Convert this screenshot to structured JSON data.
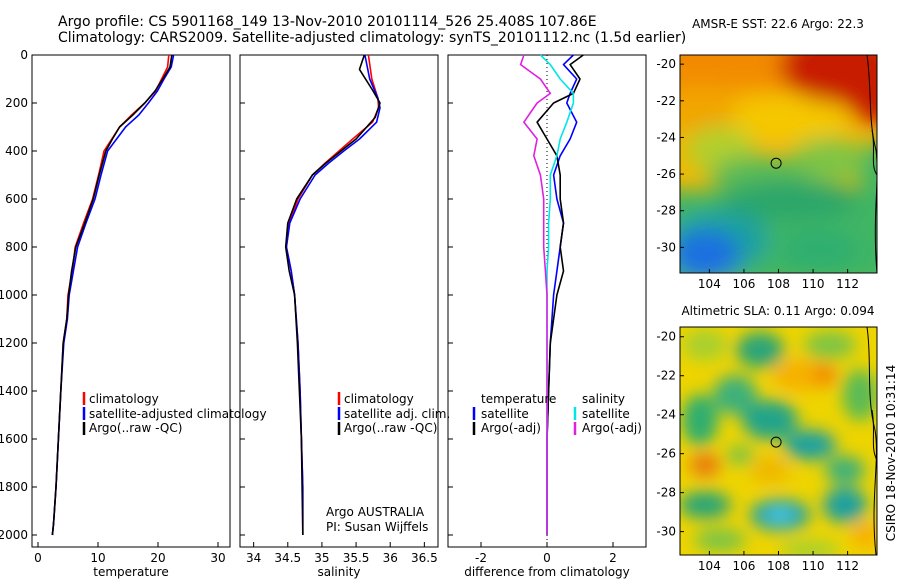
{
  "figure": {
    "title_line1": "Argo profile: CS 5901168_149 13-Nov-2010 20101114_526 25.408S 107.86E",
    "title_line2": "Climatology: CARS2009. Satellite-adjusted climatology: synTS_20101112.nc (1.5d earlier)",
    "footer": "CSIRO 18-Nov-2010 10:31:14",
    "colors": {
      "climatology": "#ff0000",
      "satellite": "#0000ff",
      "argo": "#000000",
      "salinity_satellite": "#00e5e5",
      "salinity_argo": "#e020e0"
    }
  },
  "panels": {
    "temperature": {
      "xlabel": "temperature"
    },
    "salinity": {
      "xlabel": "salinity",
      "note1": "Argo AUSTRALIA",
      "note2": "PI: Susan Wijffels"
    },
    "difference": {
      "xlabel": "difference from climatology"
    }
  },
  "legends": {
    "temperature": [
      "climatology",
      "satellite-adjusted climatology",
      "Argo(..raw -QC)"
    ],
    "salinity": [
      "climatology",
      "satellite adj. clim.",
      "Argo(..raw -QC)"
    ],
    "difference_temp": {
      "header": "temperature",
      "items": [
        "satellite",
        "Argo(-adj)"
      ]
    },
    "difference_sal": {
      "header": "salinity",
      "items": [
        "satellite",
        "Argo(-adj)"
      ]
    }
  },
  "maps": {
    "sst": {
      "title": "AMSR-E SST: 22.6 Argo: 22.3",
      "xticks": [
        "104",
        "106",
        "108",
        "110",
        "112"
      ],
      "yticks": [
        "-20",
        "-22",
        "-24",
        "-26",
        "-28",
        "-30"
      ],
      "marker": {
        "lon": 107.86,
        "lat": -25.408
      }
    },
    "sla": {
      "title": "Altimetric SLA: 0.11 Argo: 0.094",
      "xticks": [
        "104",
        "106",
        "108",
        "110",
        "112"
      ],
      "yticks": [
        "-20",
        "-22",
        "-24",
        "-26",
        "-28",
        "-30"
      ],
      "marker": {
        "lon": 107.86,
        "lat": -25.408
      }
    }
  },
  "chart_data": [
    {
      "type": "line",
      "panel": "temperature",
      "xlabel": "temperature",
      "xlim": [
        -1,
        32
      ],
      "ylim": [
        2050,
        0
      ],
      "xticks": [
        0,
        10,
        20,
        30
      ],
      "yticks": [
        0,
        200,
        400,
        600,
        800,
        1000,
        1200,
        1400,
        1600,
        1800,
        2000
      ],
      "series": [
        {
          "name": "climatology",
          "color": "#ff0000",
          "x": [
            21.8,
            21.6,
            20.6,
            19.6,
            17.8,
            15.6,
            13.6,
            12.3,
            11.0,
            10.1,
            9.1,
            7.6,
            6.2,
            5.7,
            5.0,
            4.8,
            4.2,
            3.8,
            3.4,
            3.0,
            2.6,
            2.4
          ],
          "y": [
            0,
            50,
            100,
            150,
            200,
            250,
            300,
            350,
            400,
            500,
            600,
            700,
            800,
            900,
            1000,
            1100,
            1200,
            1400,
            1600,
            1800,
            1950,
            2000
          ]
        },
        {
          "name": "satellite-adjusted climatology",
          "color": "#0000ff",
          "x": [
            22.6,
            22.2,
            21.0,
            19.9,
            18.4,
            16.8,
            14.6,
            13.1,
            11.6,
            10.5,
            9.5,
            8.0,
            6.6,
            5.9,
            5.2,
            4.9,
            4.3,
            3.8,
            3.4,
            3.0,
            2.6,
            2.4
          ],
          "y": [
            0,
            50,
            100,
            150,
            200,
            250,
            300,
            350,
            400,
            500,
            600,
            700,
            800,
            900,
            1000,
            1100,
            1200,
            1400,
            1600,
            1800,
            1950,
            2000
          ]
        },
        {
          "name": "Argo(..raw -QC)",
          "color": "#000000",
          "x": [
            22.3,
            22.0,
            20.8,
            19.5,
            17.8,
            15.8,
            13.6,
            12.4,
            11.3,
            10.2,
            9.2,
            7.8,
            6.3,
            5.6,
            5.1,
            4.8,
            4.2,
            3.8,
            3.4,
            3.0,
            2.6,
            2.4
          ],
          "y": [
            0,
            50,
            100,
            150,
            200,
            250,
            300,
            350,
            400,
            500,
            600,
            700,
            800,
            900,
            1000,
            1100,
            1200,
            1400,
            1600,
            1800,
            1950,
            2000
          ]
        }
      ]
    },
    {
      "type": "line",
      "panel": "salinity",
      "xlabel": "salinity",
      "xlim": [
        33.8,
        36.7
      ],
      "ylim": [
        2050,
        0
      ],
      "xticks": [
        34,
        34.5,
        35,
        35.5,
        36,
        36.5
      ],
      "series": [
        {
          "name": "climatology",
          "color": "#ff0000",
          "x": [
            35.68,
            35.73,
            35.82,
            35.83,
            35.74,
            35.45,
            35.25,
            35.05,
            34.86,
            34.65,
            34.52,
            34.48,
            34.55,
            34.6,
            34.65,
            34.68,
            34.7,
            34.72,
            34.72
          ],
          "y": [
            0,
            100,
            180,
            220,
            280,
            350,
            400,
            450,
            500,
            600,
            700,
            800,
            900,
            1000,
            1200,
            1400,
            1600,
            1800,
            2000
          ]
        },
        {
          "name": "satellite adj. clim.",
          "color": "#0000ff",
          "x": [
            35.63,
            35.7,
            35.82,
            35.85,
            35.8,
            35.55,
            35.32,
            35.1,
            34.9,
            34.68,
            34.53,
            34.48,
            34.55,
            34.6,
            34.65,
            34.68,
            34.7,
            34.72,
            34.72
          ],
          "y": [
            0,
            100,
            180,
            220,
            280,
            350,
            400,
            450,
            500,
            600,
            700,
            800,
            900,
            1000,
            1200,
            1400,
            1600,
            1800,
            2000
          ]
        },
        {
          "name": "Argo(..raw -QC)",
          "color": "#000000",
          "x": [
            35.62,
            35.55,
            35.75,
            35.85,
            35.78,
            35.5,
            35.28,
            35.06,
            34.86,
            34.63,
            34.5,
            34.47,
            34.52,
            34.6,
            34.64,
            34.67,
            34.7,
            34.71,
            34.72
          ],
          "y": [
            0,
            60,
            150,
            200,
            260,
            350,
            400,
            450,
            500,
            600,
            700,
            800,
            900,
            1000,
            1200,
            1400,
            1600,
            1800,
            2000
          ]
        }
      ]
    },
    {
      "type": "line",
      "panel": "difference",
      "xlabel": "difference from climatology",
      "xlim": [
        -3.0,
        3.0
      ],
      "ylim": [
        2050,
        0
      ],
      "xticks": [
        -2,
        0,
        2
      ],
      "series": [
        {
          "name": "temperature satellite",
          "color": "#0000ff",
          "x": [
            0.8,
            0.5,
            0.9,
            0.7,
            0.6,
            0.9,
            0.7,
            0.4,
            0.2,
            0.3,
            0.5,
            0.4,
            0.3,
            0.2,
            0.1,
            0.05,
            0.0,
            0.0,
            0.0
          ],
          "y": [
            0,
            40,
            100,
            160,
            200,
            280,
            350,
            420,
            500,
            600,
            700,
            800,
            900,
            1000,
            1200,
            1400,
            1600,
            1800,
            2000
          ]
        },
        {
          "name": "temperature Argo(-adj)",
          "color": "#000000",
          "x": [
            1.1,
            0.7,
            1.0,
            0.8,
            0.2,
            -0.3,
            0.0,
            0.3,
            0.4,
            0.4,
            0.5,
            0.4,
            0.5,
            0.3,
            0.1,
            0.05,
            0.0,
            0.0,
            0.0
          ],
          "y": [
            0,
            40,
            100,
            160,
            200,
            280,
            350,
            420,
            500,
            600,
            700,
            800,
            900,
            1000,
            1200,
            1400,
            1600,
            1800,
            2000
          ]
        },
        {
          "name": "salinity satellite",
          "color": "#00e5e5",
          "x": [
            -0.2,
            0.1,
            0.4,
            0.8,
            0.8,
            0.6,
            0.4,
            0.3,
            0.1,
            0.1,
            0.05,
            0.05,
            0.0,
            0.0,
            0.0,
            0.0,
            0.0,
            0.0,
            0.0
          ],
          "y": [
            0,
            40,
            100,
            160,
            200,
            280,
            350,
            420,
            500,
            600,
            700,
            800,
            900,
            1000,
            1200,
            1400,
            1600,
            1800,
            2000
          ]
        },
        {
          "name": "salinity Argo(-adj)",
          "color": "#e020e0",
          "x": [
            -0.7,
            -0.8,
            -0.2,
            0.1,
            -0.3,
            -0.7,
            -0.3,
            -0.4,
            -0.2,
            -0.1,
            -0.1,
            -0.1,
            -0.05,
            0.0,
            0.0,
            0.0,
            0.0,
            0.0,
            0.0
          ],
          "y": [
            0,
            40,
            100,
            160,
            200,
            280,
            350,
            420,
            500,
            600,
            700,
            800,
            900,
            1000,
            1200,
            1400,
            1600,
            1800,
            2000
          ]
        }
      ]
    }
  ]
}
